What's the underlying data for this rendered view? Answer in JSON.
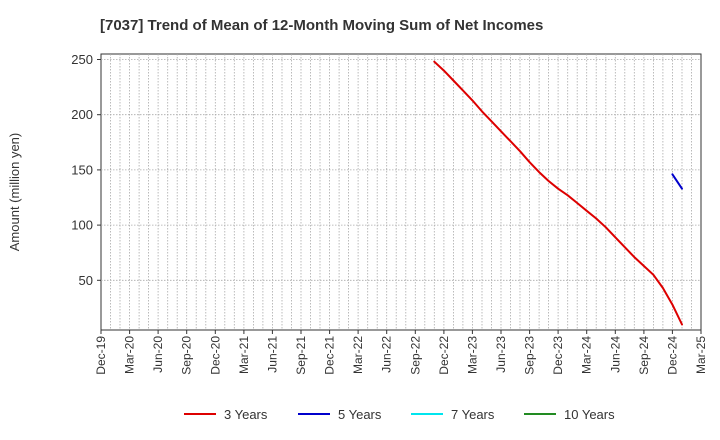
{
  "chart_data": {
    "type": "line",
    "title": "[7037]  Trend of Mean of 12-Month Moving Sum of Net Incomes",
    "xlabel": "",
    "ylabel": "Amount (million yen)",
    "x_ticks": [
      "Dec-19",
      "Mar-20",
      "Jun-20",
      "Sep-20",
      "Dec-20",
      "Mar-21",
      "Jun-21",
      "Sep-21",
      "Dec-21",
      "Mar-22",
      "Jun-22",
      "Sep-22",
      "Dec-22",
      "Mar-23",
      "Jun-23",
      "Sep-23",
      "Dec-23",
      "Mar-24",
      "Jun-24",
      "Sep-24",
      "Dec-24",
      "Mar-25"
    ],
    "y_ticks": [
      50,
      100,
      150,
      200,
      250
    ],
    "ylim": [
      5,
      255
    ],
    "grid": true,
    "legend_position": "bottom",
    "series": [
      {
        "name": "3 Years",
        "color": "#dd0000",
        "points": [
          [
            "Nov-22",
            248
          ],
          [
            "Dec-22",
            240
          ],
          [
            "Jan-23",
            231
          ],
          [
            "Feb-23",
            222
          ],
          [
            "Mar-23",
            213
          ],
          [
            "Apr-23",
            203
          ],
          [
            "May-23",
            194
          ],
          [
            "Jun-23",
            185
          ],
          [
            "Jul-23",
            176
          ],
          [
            "Aug-23",
            167
          ],
          [
            "Sep-23",
            157
          ],
          [
            "Oct-23",
            148
          ],
          [
            "Nov-23",
            140
          ],
          [
            "Dec-23",
            133
          ],
          [
            "Jan-24",
            127
          ],
          [
            "Feb-24",
            120
          ],
          [
            "Mar-24",
            113
          ],
          [
            "Apr-24",
            106
          ],
          [
            "May-24",
            98
          ],
          [
            "Jun-24",
            89
          ],
          [
            "Jul-24",
            80
          ],
          [
            "Aug-24",
            71
          ],
          [
            "Sep-24",
            63
          ],
          [
            "Oct-24",
            55
          ],
          [
            "Nov-24",
            43
          ],
          [
            "Dec-24",
            28
          ],
          [
            "Jan-25",
            10
          ]
        ]
      },
      {
        "name": "5 Years",
        "color": "#0000cc",
        "points": [
          [
            "Dec-24",
            146
          ],
          [
            "Jan-25",
            133
          ]
        ]
      },
      {
        "name": "7 Years",
        "color": "#00e5ee",
        "points": []
      },
      {
        "name": "10 Years",
        "color": "#228b22",
        "points": []
      }
    ]
  }
}
